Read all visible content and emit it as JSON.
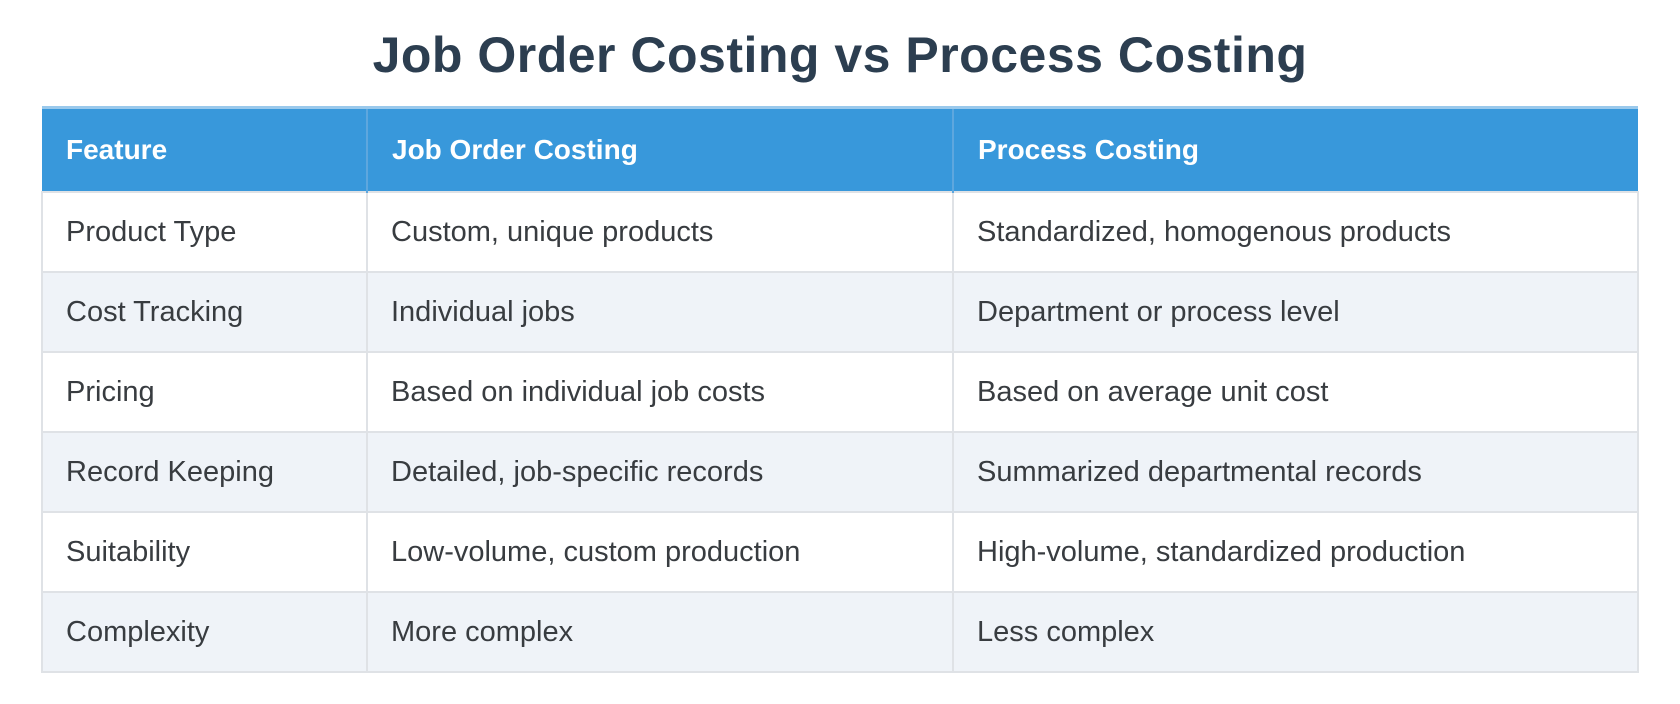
{
  "title": "Job Order Costing vs Process Costing",
  "table": {
    "columns": [
      "Feature",
      "Job Order Costing",
      "Process Costing"
    ],
    "rows": [
      [
        "Product Type",
        "Custom, unique products",
        "Standardized, homogenous products"
      ],
      [
        "Cost Tracking",
        "Individual jobs",
        "Department or process level"
      ],
      [
        "Pricing",
        "Based on individual job costs",
        "Based on average unit cost"
      ],
      [
        "Record Keeping",
        "Detailed, job-specific records",
        "Summarized departmental records"
      ],
      [
        "Suitability",
        "Low-volume, custom production",
        "High-volume, standardized production"
      ],
      [
        "Complexity",
        "More complex",
        "Less complex"
      ]
    ]
  },
  "colors": {
    "header_bg": "#3898db",
    "header_divider": "#5ea7de",
    "header_top_highlight": "#9ac9ec",
    "header_text": "#ffffff",
    "title_text": "#2c3e50",
    "body_text": "#383c40",
    "alt_row_bg": "#eff3f8",
    "border": "#dfe2e6",
    "page_bg": "#ffffff"
  }
}
